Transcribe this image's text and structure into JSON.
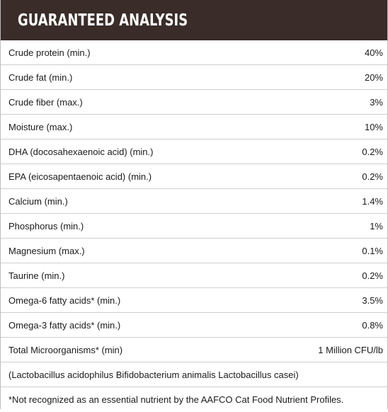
{
  "header": {
    "title": "GUARANTEED ANALYSIS"
  },
  "rows": [
    {
      "label": "Crude protein (min.)",
      "value": "40%"
    },
    {
      "label": "Crude fat (min.)",
      "value": "20%"
    },
    {
      "label": "Crude fiber (max.)",
      "value": "3%"
    },
    {
      "label": "Moisture (max.)",
      "value": "10%"
    },
    {
      "label": "DHA (docosahexaenoic acid) (min.)",
      "value": "0.2%"
    },
    {
      "label": "EPA (eicosapentaenoic acid) (min.)",
      "value": "0.2%"
    },
    {
      "label": "Calcium (min.)",
      "value": "1.4%"
    },
    {
      "label": "Phosphorus (min.)",
      "value": "1%"
    },
    {
      "label": "Magnesium (max.)",
      "value": "0.1%"
    },
    {
      "label": "Taurine (min.)",
      "value": "0.2%"
    },
    {
      "label": "Omega-6 fatty acids* (min.)",
      "value": "3.5%"
    },
    {
      "label": "Omega-3 fatty acids* (min.)",
      "value": "0.8%"
    },
    {
      "label": "Total Microorganisms* (min)",
      "value": "1 Million CFU/lb"
    }
  ],
  "note": "(Lactobacillus acidophilus Bifidobacterium animalis Lactobacillus casei)",
  "footnote": "*Not recognized as an essential nutrient by the AAFCO Cat Food Nutrient Profiles."
}
